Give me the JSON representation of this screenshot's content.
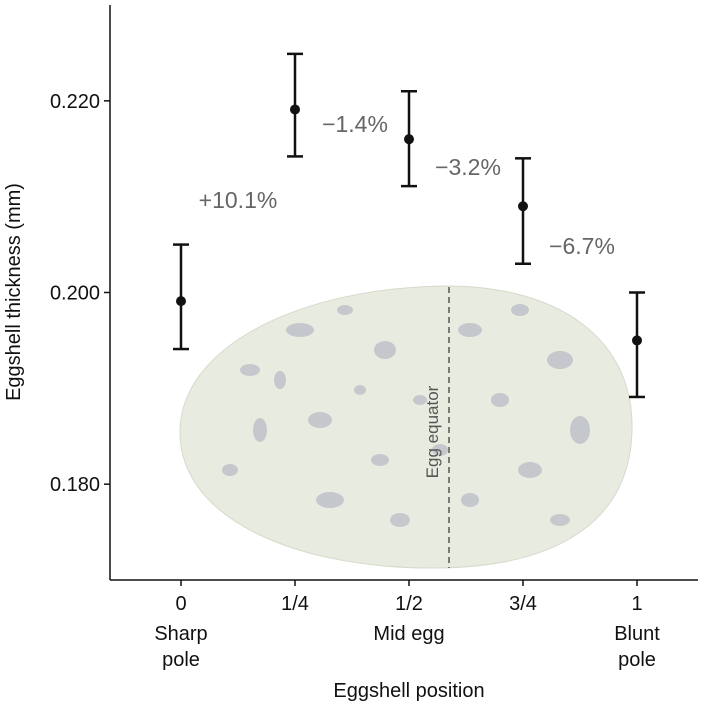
{
  "chart_data": {
    "type": "errorbar",
    "x_label": "Eggshell position",
    "y_label": "Eggshell thickness (mm)",
    "categories": [
      "0",
      "1/4",
      "1/2",
      "3/4",
      "1"
    ],
    "sublabels": [
      [
        "Sharp",
        "pole"
      ],
      null,
      [
        "Mid egg"
      ],
      null,
      [
        "Blunt",
        "pole"
      ]
    ],
    "values": [
      0.1991,
      0.2191,
      0.216,
      0.209,
      0.195
    ],
    "lower": [
      0.1941,
      0.2142,
      0.2111,
      0.203,
      0.1891
    ],
    "upper": [
      0.205,
      0.2249,
      0.221,
      0.214,
      0.2
    ],
    "color": "#111111",
    "ylim": [
      0.17,
      0.23
    ],
    "yticks": [
      {
        "value": 0.18,
        "label": "0.180"
      },
      {
        "value": 0.2,
        "label": "0.200"
      },
      {
        "value": 0.22,
        "label": "0.220"
      }
    ],
    "annotations": [
      "+10.1%",
      "−1.4%",
      "−3.2%",
      "−6.7%"
    ],
    "equator_label": "Egg equator"
  }
}
